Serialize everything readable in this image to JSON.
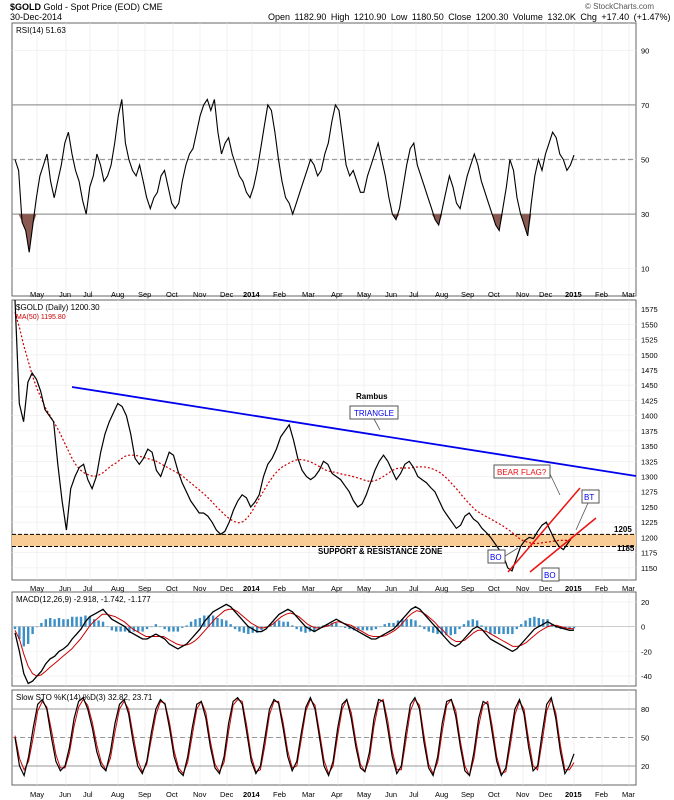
{
  "header": {
    "symbol": "$GOLD",
    "name": "Gold - Spot Price (EOD)",
    "exchange": "CME",
    "date": "30-Dec-2014",
    "quote": "Open 1182.90  High 1210.90  Low 1180.50  Close 1200.30  Volume 132.0K  Chg +17.40 (+1.47%)",
    "watermark": "© StockCharts.com"
  },
  "x_axis_labels": [
    "May",
    "Jun",
    "Jul",
    "Aug",
    "Sep",
    "Oct",
    "Nov",
    "Dec",
    "2014",
    "Feb",
    "Mar",
    "Apr",
    "May",
    "Jun",
    "Jul",
    "Aug",
    "Sep",
    "Oct",
    "Nov",
    "Dec",
    "2015",
    "Feb",
    "Mar"
  ],
  "colors": {
    "price": "#000000",
    "ma": "#cc0000",
    "trend": "#0000ee",
    "channel": "#ee1111",
    "zone": "#f8cc94",
    "histogram": "#3b8fc6",
    "rsi_fill": "#8a5a52",
    "grid": "#9a9a9a"
  },
  "chart_data": [
    {
      "type": "line",
      "panel": "rsi",
      "label": "RSI(14) 51.63",
      "ylim": [
        0,
        100
      ],
      "yticks": [
        10,
        30,
        50,
        70,
        90
      ],
      "reference_lines": [
        30,
        50,
        70
      ],
      "series": [
        {
          "name": "RSI(14)",
          "values": [
            50,
            46,
            27,
            24,
            16,
            26,
            36,
            44,
            48,
            52,
            42,
            36,
            42,
            48,
            56,
            60,
            52,
            46,
            42,
            35,
            30,
            40,
            44,
            52,
            48,
            42,
            44,
            48,
            56,
            66,
            72,
            56,
            50,
            46,
            44,
            48,
            42,
            36,
            32,
            36,
            38,
            44,
            46,
            40,
            34,
            32,
            34,
            42,
            48,
            52,
            54,
            60,
            66,
            70,
            72,
            68,
            72,
            60,
            52,
            56,
            58,
            52,
            48,
            44,
            42,
            38,
            36,
            40,
            46,
            54,
            62,
            70,
            68,
            60,
            50,
            42,
            36,
            34,
            30,
            34,
            38,
            42,
            46,
            50,
            48,
            44,
            46,
            52,
            56,
            64,
            70,
            68,
            58,
            48,
            44,
            46,
            42,
            38,
            38,
            44,
            48,
            52,
            56,
            50,
            44,
            36,
            30,
            28,
            32,
            40,
            48,
            54,
            56,
            48,
            44,
            40,
            36,
            32,
            28,
            26,
            32,
            38,
            44,
            40,
            34,
            32,
            38,
            44,
            48,
            52,
            48,
            42,
            38,
            34,
            30,
            26,
            24,
            32,
            40,
            50,
            46,
            36,
            30,
            26,
            22,
            34,
            44,
            50,
            46,
            52,
            56,
            60,
            58,
            52,
            50,
            46,
            48,
            51.63
          ]
        }
      ]
    },
    {
      "type": "line",
      "panel": "price",
      "label": "$GOLD (Daily) 1200.30",
      "ylim": [
        1130,
        1590
      ],
      "yticks": [
        1150,
        1175,
        1200,
        1225,
        1250,
        1275,
        1300,
        1325,
        1350,
        1375,
        1400,
        1425,
        1450,
        1475,
        1500,
        1525,
        1550,
        1575
      ],
      "series": [
        {
          "name": "$GOLD (Daily)",
          "values": [
            1590,
            1420,
            1390,
            1455,
            1470,
            1460,
            1440,
            1410,
            1400,
            1390,
            1320,
            1260,
            1212,
            1280,
            1300,
            1315,
            1320,
            1295,
            1280,
            1300,
            1340,
            1370,
            1390,
            1405,
            1420,
            1415,
            1400,
            1370,
            1330,
            1320,
            1330,
            1345,
            1340,
            1310,
            1300,
            1320,
            1340,
            1335,
            1310,
            1290,
            1275,
            1260,
            1250,
            1240,
            1240,
            1235,
            1225,
            1212,
            1205,
            1210,
            1225,
            1245,
            1260,
            1270,
            1265,
            1250,
            1258,
            1270,
            1300,
            1320,
            1330,
            1345,
            1365,
            1375,
            1385,
            1360,
            1330,
            1310,
            1300,
            1295,
            1300,
            1310,
            1325,
            1320,
            1305,
            1300,
            1295,
            1285,
            1275,
            1260,
            1250,
            1255,
            1270,
            1290,
            1310,
            1325,
            1335,
            1325,
            1310,
            1295,
            1305,
            1320,
            1325,
            1315,
            1300,
            1295,
            1290,
            1282,
            1275,
            1260,
            1245,
            1235,
            1225,
            1215,
            1220,
            1235,
            1240,
            1230,
            1225,
            1215,
            1208,
            1200,
            1190,
            1180,
            1170,
            1150,
            1145,
            1165,
            1185,
            1195,
            1200,
            1198,
            1210,
            1220,
            1225,
            1210,
            1195,
            1185,
            1180,
            1190,
            1200.3
          ]
        },
        {
          "name": "MA(50) 1195.80",
          "values": [
            1570,
            1545,
            1515,
            1490,
            1465,
            1445,
            1428,
            1412,
            1400,
            1388,
            1375,
            1360,
            1345,
            1330,
            1318,
            1310,
            1305,
            1302,
            1300,
            1302,
            1306,
            1312,
            1318,
            1322,
            1328,
            1333,
            1335,
            1335,
            1334,
            1332,
            1330,
            1328,
            1326,
            1322,
            1318,
            1314,
            1310,
            1306,
            1302,
            1296,
            1290,
            1284,
            1278,
            1272,
            1265,
            1258,
            1250,
            1243,
            1236,
            1230,
            1226,
            1224,
            1226,
            1232,
            1242,
            1255,
            1268,
            1280,
            1292,
            1302,
            1310,
            1316,
            1320,
            1324,
            1327,
            1328,
            1327,
            1325,
            1322,
            1318,
            1314,
            1310,
            1308,
            1307,
            1305,
            1303,
            1302,
            1300,
            1298,
            1296,
            1293,
            1292,
            1293,
            1296,
            1300,
            1305,
            1310,
            1313,
            1314,
            1314,
            1314,
            1315,
            1316,
            1316,
            1315,
            1313,
            1310,
            1306,
            1300,
            1293,
            1285,
            1277,
            1268,
            1260,
            1252,
            1245,
            1240,
            1236,
            1232,
            1228,
            1224,
            1220,
            1215,
            1210,
            1204,
            1198,
            1194,
            1192,
            1190,
            1190,
            1191,
            1192,
            1193,
            1194,
            1195,
            1195,
            1195,
            1195.8
          ]
        }
      ],
      "annotations": {
        "author": "Rambus",
        "pattern": "TRIANGLE",
        "bear_flag": "BEAR FLAG?",
        "bo1": "BO",
        "bo2": "BO",
        "bt": "BT",
        "zone_top": "1205",
        "zone_bottom": "1185",
        "zone_label": "SUPPORT & RESISTANCE ZONE"
      }
    },
    {
      "type": "line",
      "panel": "macd",
      "label": "MACD(12,26,9) -2.918, -1.742, -1.177",
      "ylim": [
        -48,
        28
      ],
      "yticks": [
        -40,
        -20,
        0,
        20
      ],
      "series": [
        {
          "name": "MACD",
          "values": [
            -5,
            -20,
            -38,
            -46,
            -44,
            -40,
            -36,
            -30,
            -26,
            -24,
            -20,
            -18,
            -15,
            -10,
            -6,
            -2,
            4,
            8,
            10,
            12,
            14,
            10,
            6,
            4,
            2,
            0,
            -4,
            -6,
            -8,
            -10,
            -10,
            -8,
            -6,
            -8,
            -10,
            -14,
            -16,
            -18,
            -16,
            -14,
            -10,
            -6,
            -2,
            4,
            8,
            12,
            14,
            16,
            18,
            16,
            12,
            8,
            4,
            0,
            -2,
            -4,
            -4,
            -2,
            2,
            6,
            10,
            12,
            14,
            12,
            8,
            4,
            0,
            -2,
            -4,
            -2,
            0,
            2,
            4,
            6,
            4,
            2,
            0,
            -2,
            -4,
            -6,
            -8,
            -10,
            -10,
            -8,
            -6,
            -4,
            -2,
            2,
            6,
            10,
            14,
            16,
            14,
            10,
            6,
            2,
            -2,
            -6,
            -10,
            -14,
            -16,
            -14,
            -10,
            -6,
            -2,
            0,
            -2,
            -6,
            -10,
            -12,
            -14,
            -16,
            -18,
            -20,
            -18,
            -14,
            -10,
            -6,
            -2,
            0,
            2,
            4,
            2,
            0,
            -1,
            -2,
            -3,
            -2.918
          ]
        },
        {
          "name": "Signal",
          "values": [
            -3,
            -10,
            -22,
            -32,
            -38,
            -40,
            -39,
            -36,
            -33,
            -30,
            -27,
            -24,
            -21,
            -18,
            -14,
            -10,
            -5,
            0,
            4,
            7,
            10,
            10,
            9,
            8,
            6,
            4,
            1,
            -2,
            -4,
            -6,
            -8,
            -8,
            -8,
            -8,
            -8,
            -10,
            -12,
            -14,
            -15,
            -15,
            -14,
            -12,
            -9,
            -5,
            -1,
            3,
            7,
            10,
            13,
            14,
            14,
            12,
            9,
            6,
            3,
            1,
            -1,
            -1,
            0,
            2,
            5,
            8,
            10,
            11,
            10,
            8,
            5,
            2,
            0,
            -1,
            -1,
            0,
            1,
            3,
            4,
            3,
            2,
            1,
            -1,
            -3,
            -5,
            -7,
            -8,
            -8,
            -8,
            -7,
            -5,
            -3,
            0,
            4,
            8,
            11,
            13,
            12,
            10,
            7,
            4,
            0,
            -3,
            -7,
            -10,
            -12,
            -12,
            -11,
            -8,
            -5,
            -3,
            -3,
            -4,
            -6,
            -8,
            -10,
            -12,
            -14,
            -16,
            -16,
            -15,
            -13,
            -10,
            -7,
            -4,
            -2,
            0,
            1,
            1,
            0,
            -1,
            -1.5,
            -1.742
          ]
        }
      ]
    },
    {
      "type": "line",
      "panel": "stochastic",
      "label": "Slow STO %K(14) %D(3) 32.82, 23.71",
      "ylim": [
        0,
        100
      ],
      "yticks": [
        20,
        50,
        80
      ],
      "reference_lines": [
        20,
        50,
        80
      ],
      "series": [
        {
          "name": "%K",
          "values": [
            50,
            20,
            10,
            30,
            60,
            85,
            90,
            80,
            50,
            25,
            15,
            20,
            40,
            70,
            88,
            92,
            80,
            60,
            35,
            20,
            15,
            35,
            65,
            85,
            90,
            75,
            45,
            20,
            12,
            25,
            55,
            80,
            90,
            85,
            60,
            30,
            15,
            10,
            30,
            60,
            85,
            88,
            70,
            40,
            18,
            12,
            30,
            65,
            88,
            92,
            85,
            55,
            25,
            12,
            20,
            50,
            80,
            90,
            86,
            60,
            30,
            15,
            25,
            55,
            82,
            92,
            80,
            50,
            20,
            10,
            25,
            60,
            85,
            90,
            70,
            40,
            18,
            14,
            35,
            70,
            90,
            88,
            60,
            30,
            12,
            20,
            55,
            85,
            92,
            80,
            45,
            18,
            10,
            30,
            65,
            88,
            90,
            72,
            40,
            15,
            10,
            35,
            70,
            88,
            85,
            55,
            25,
            10,
            18,
            50,
            80,
            90,
            75,
            40,
            15,
            20,
            55,
            85,
            92,
            70,
            35,
            12,
            20,
            32.82
          ]
        },
        {
          "name": "%D",
          "values": [
            52,
            28,
            16,
            25,
            50,
            78,
            88,
            82,
            58,
            32,
            18,
            18,
            34,
            62,
            82,
            90,
            84,
            66,
            42,
            24,
            16,
            28,
            56,
            80,
            88,
            80,
            52,
            26,
            14,
            22,
            48,
            74,
            88,
            86,
            66,
            36,
            18,
            12,
            24,
            52,
            80,
            88,
            76,
            46,
            22,
            14,
            24,
            56,
            84,
            90,
            88,
            62,
            30,
            14,
            16,
            42,
            74,
            88,
            88,
            66,
            36,
            18,
            20,
            48,
            78,
            90,
            84,
            56,
            26,
            12,
            20,
            52,
            80,
            90,
            76,
            46,
            22,
            14,
            28,
            62,
            86,
            90,
            68,
            36,
            16,
            16,
            46,
            78,
            90,
            84,
            52,
            22,
            12,
            24,
            56,
            84,
            90,
            78,
            46,
            20,
            10,
            28,
            62,
            84,
            88,
            62,
            30,
            12,
            14,
            42,
            74,
            88,
            80,
            48,
            20,
            16,
            46,
            78,
            90,
            76,
            42,
            16,
            16,
            23.71
          ]
        }
      ]
    }
  ]
}
